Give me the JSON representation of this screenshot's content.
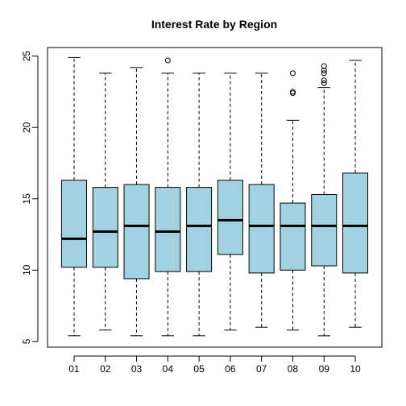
{
  "chart_data": {
    "type": "boxplot",
    "title": "Interest Rate by Region",
    "xlabel": "",
    "ylabel": "",
    "ylim": [
      4.6,
      25.6
    ],
    "y_ticks": [
      5,
      10,
      15,
      20,
      25
    ],
    "categories": [
      "01",
      "02",
      "03",
      "04",
      "05",
      "06",
      "07",
      "08",
      "09",
      "10"
    ],
    "box_fill": "#a2d2e2",
    "boxes": [
      {
        "category": "01",
        "whisker_low": 5.4,
        "q1": 10.2,
        "median": 12.2,
        "q3": 16.3,
        "whisker_high": 24.9,
        "outliers": []
      },
      {
        "category": "02",
        "whisker_low": 5.8,
        "q1": 10.2,
        "median": 12.7,
        "q3": 15.8,
        "whisker_high": 23.8,
        "outliers": []
      },
      {
        "category": "03",
        "whisker_low": 5.4,
        "q1": 9.4,
        "median": 13.1,
        "q3": 16.0,
        "whisker_high": 24.2,
        "outliers": []
      },
      {
        "category": "04",
        "whisker_low": 5.4,
        "q1": 9.9,
        "median": 12.7,
        "q3": 15.8,
        "whisker_high": 23.8,
        "outliers": [
          24.7
        ]
      },
      {
        "category": "05",
        "whisker_low": 5.4,
        "q1": 9.9,
        "median": 13.1,
        "q3": 15.8,
        "whisker_high": 23.8,
        "outliers": []
      },
      {
        "category": "06",
        "whisker_low": 5.8,
        "q1": 11.1,
        "median": 13.5,
        "q3": 16.3,
        "whisker_high": 23.8,
        "outliers": []
      },
      {
        "category": "07",
        "whisker_low": 6.0,
        "q1": 9.8,
        "median": 13.1,
        "q3": 16.0,
        "whisker_high": 23.8,
        "outliers": []
      },
      {
        "category": "08",
        "whisker_low": 5.8,
        "q1": 10.0,
        "median": 13.1,
        "q3": 14.7,
        "whisker_high": 20.5,
        "outliers": [
          22.4,
          22.5,
          23.8
        ]
      },
      {
        "category": "09",
        "whisker_low": 5.4,
        "q1": 10.3,
        "median": 13.1,
        "q3": 15.3,
        "whisker_high": 22.8,
        "outliers": [
          23.1,
          23.3,
          23.8,
          24.0,
          24.3
        ]
      },
      {
        "category": "10",
        "whisker_low": 6.0,
        "q1": 9.8,
        "median": 13.1,
        "q3": 16.8,
        "whisker_high": 24.7,
        "outliers": []
      }
    ]
  }
}
